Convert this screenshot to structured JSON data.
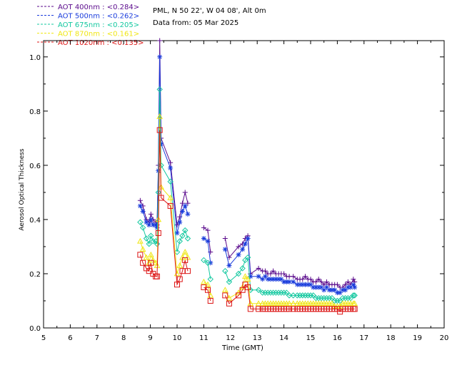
{
  "chart_data": {
    "type": "scatter",
    "info_lines": [
      "PML, N 50 22', W 04 08', Alt 0m",
      "Data from: 05 Mar 2025"
    ],
    "xlabel": "Time (GMT)",
    "ylabel": "Aerosol Optical Thickness",
    "xlim": [
      5,
      20
    ],
    "ylim": [
      0,
      1.06
    ],
    "x_ticks": [
      5,
      6,
      7,
      8,
      9,
      10,
      11,
      12,
      13,
      14,
      15,
      16,
      17,
      18,
      19,
      20
    ],
    "y_ticks": [
      0.0,
      0.2,
      0.4,
      0.6,
      0.8,
      1.0
    ],
    "y_tick_labels": [
      "0.0",
      "0.2",
      "0.4",
      "0.6",
      "0.8",
      "1.0"
    ],
    "x_tick_labels": [
      "5",
      "6",
      "7",
      "8",
      "9",
      "10",
      "11",
      "12",
      "13",
      "14",
      "15",
      "16",
      "17",
      "18",
      "19",
      "20"
    ],
    "legend_placement": "top-left, above plot",
    "series": [
      {
        "name": "AOT  400nm : <0.284>",
        "color": "#5a0a8c",
        "marker": "plus",
        "x": [
          8.62,
          8.72,
          8.85,
          8.95,
          9.02,
          9.1,
          9.2,
          9.25,
          9.3,
          9.35,
          9.4,
          9.75,
          10.0,
          10.1,
          10.2,
          10.3,
          10.4,
          11.0,
          11.15,
          11.25,
          11.8,
          11.95,
          12.3,
          12.45,
          12.55,
          12.65,
          12.75,
          13.05,
          13.2,
          13.3,
          13.4,
          13.5,
          13.6,
          13.7,
          13.8,
          13.9,
          14.0,
          14.1,
          14.2,
          14.35,
          14.5,
          14.6,
          14.7,
          14.8,
          14.9,
          15.0,
          15.1,
          15.2,
          15.3,
          15.4,
          15.5,
          15.6,
          15.7,
          15.8,
          15.9,
          16.0,
          16.1,
          16.2,
          16.3,
          16.4,
          16.5,
          16.6,
          16.65
        ],
        "y": [
          0.47,
          0.45,
          0.4,
          0.39,
          0.42,
          0.4,
          0.39,
          0.38,
          0.6,
          1.06,
          0.7,
          0.61,
          0.38,
          0.41,
          0.46,
          0.5,
          0.46,
          0.37,
          0.36,
          0.28,
          0.33,
          0.26,
          0.3,
          0.31,
          0.33,
          0.34,
          0.2,
          0.22,
          0.21,
          0.21,
          0.2,
          0.2,
          0.21,
          0.2,
          0.2,
          0.2,
          0.2,
          0.19,
          0.19,
          0.19,
          0.18,
          0.18,
          0.18,
          0.19,
          0.18,
          0.18,
          0.17,
          0.17,
          0.18,
          0.17,
          0.16,
          0.17,
          0.16,
          0.16,
          0.16,
          0.16,
          0.15,
          0.15,
          0.16,
          0.17,
          0.16,
          0.18,
          0.17
        ]
      },
      {
        "name": "AOT  500nm : <0.262>",
        "color": "#1a3cdc",
        "marker": "asterisk",
        "x": [
          8.62,
          8.72,
          8.85,
          8.95,
          9.02,
          9.1,
          9.2,
          9.25,
          9.3,
          9.35,
          9.4,
          9.75,
          10.0,
          10.1,
          10.2,
          10.3,
          10.4,
          11.0,
          11.15,
          11.25,
          11.8,
          11.95,
          12.3,
          12.45,
          12.55,
          12.65,
          12.75,
          13.05,
          13.2,
          13.3,
          13.4,
          13.5,
          13.6,
          13.7,
          13.8,
          13.9,
          14.0,
          14.1,
          14.2,
          14.35,
          14.5,
          14.6,
          14.7,
          14.8,
          14.9,
          15.0,
          15.1,
          15.2,
          15.3,
          15.4,
          15.5,
          15.6,
          15.7,
          15.8,
          15.9,
          16.0,
          16.1,
          16.2,
          16.3,
          16.4,
          16.5,
          16.6,
          16.65
        ],
        "y": [
          0.45,
          0.43,
          0.39,
          0.38,
          0.4,
          0.38,
          0.38,
          0.37,
          0.58,
          1.0,
          0.68,
          0.59,
          0.35,
          0.39,
          0.43,
          0.45,
          0.42,
          0.33,
          0.32,
          0.24,
          0.29,
          0.23,
          0.27,
          0.29,
          0.31,
          0.33,
          0.19,
          0.19,
          0.18,
          0.19,
          0.18,
          0.18,
          0.18,
          0.18,
          0.18,
          0.18,
          0.17,
          0.17,
          0.17,
          0.17,
          0.16,
          0.16,
          0.16,
          0.16,
          0.16,
          0.16,
          0.15,
          0.15,
          0.15,
          0.15,
          0.14,
          0.15,
          0.14,
          0.14,
          0.14,
          0.13,
          0.13,
          0.14,
          0.14,
          0.15,
          0.15,
          0.16,
          0.15
        ]
      },
      {
        "name": "AOT  675nm : <0.205>",
        "color": "#14c8a0",
        "marker": "diamond",
        "x": [
          8.62,
          8.72,
          8.85,
          8.95,
          9.02,
          9.1,
          9.2,
          9.25,
          9.3,
          9.35,
          9.4,
          9.75,
          10.0,
          10.1,
          10.2,
          10.3,
          10.4,
          11.0,
          11.15,
          11.25,
          11.8,
          11.95,
          12.3,
          12.45,
          12.55,
          12.65,
          12.75,
          13.05,
          13.2,
          13.3,
          13.4,
          13.5,
          13.6,
          13.7,
          13.8,
          13.9,
          14.0,
          14.1,
          14.2,
          14.35,
          14.5,
          14.6,
          14.7,
          14.8,
          14.9,
          15.0,
          15.1,
          15.2,
          15.3,
          15.4,
          15.5,
          15.6,
          15.7,
          15.8,
          15.9,
          16.0,
          16.1,
          16.2,
          16.3,
          16.4,
          16.5,
          16.6,
          16.65
        ],
        "y": [
          0.39,
          0.37,
          0.33,
          0.31,
          0.34,
          0.32,
          0.32,
          0.31,
          0.5,
          0.88,
          0.6,
          0.54,
          0.28,
          0.32,
          0.34,
          0.36,
          0.33,
          0.25,
          0.24,
          0.18,
          0.21,
          0.17,
          0.2,
          0.22,
          0.25,
          0.26,
          0.14,
          0.14,
          0.13,
          0.13,
          0.13,
          0.13,
          0.13,
          0.13,
          0.13,
          0.13,
          0.13,
          0.13,
          0.12,
          0.12,
          0.12,
          0.12,
          0.12,
          0.12,
          0.12,
          0.12,
          0.12,
          0.11,
          0.11,
          0.11,
          0.11,
          0.11,
          0.11,
          0.11,
          0.1,
          0.1,
          0.1,
          0.11,
          0.11,
          0.11,
          0.11,
          0.12,
          0.12
        ]
      },
      {
        "name": "AOT  870nm : <0.161>",
        "color": "#f0e614",
        "marker": "triangle",
        "x": [
          8.62,
          8.72,
          8.85,
          8.95,
          9.02,
          9.1,
          9.2,
          9.25,
          9.3,
          9.35,
          9.4,
          9.75,
          10.0,
          10.1,
          10.2,
          10.3,
          10.4,
          11.0,
          11.15,
          11.25,
          11.8,
          11.95,
          12.3,
          12.45,
          12.55,
          12.65,
          12.75,
          13.05,
          13.2,
          13.3,
          13.4,
          13.5,
          13.6,
          13.7,
          13.8,
          13.9,
          14.0,
          14.1,
          14.2,
          14.35,
          14.5,
          14.6,
          14.7,
          14.8,
          14.9,
          15.0,
          15.1,
          15.2,
          15.3,
          15.4,
          15.5,
          15.6,
          15.7,
          15.8,
          15.9,
          16.0,
          16.1,
          16.2,
          16.3,
          16.4,
          16.5,
          16.6,
          16.65
        ],
        "y": [
          0.32,
          0.29,
          0.26,
          0.24,
          0.27,
          0.25,
          0.24,
          0.23,
          0.4,
          0.78,
          0.52,
          0.48,
          0.2,
          0.23,
          0.26,
          0.28,
          0.26,
          0.17,
          0.16,
          0.12,
          0.14,
          0.11,
          0.13,
          0.15,
          0.19,
          0.18,
          0.09,
          0.09,
          0.09,
          0.09,
          0.09,
          0.09,
          0.09,
          0.09,
          0.09,
          0.09,
          0.09,
          0.09,
          0.09,
          0.09,
          0.09,
          0.09,
          0.09,
          0.09,
          0.09,
          0.09,
          0.09,
          0.09,
          0.09,
          0.09,
          0.09,
          0.09,
          0.09,
          0.09,
          0.08,
          0.08,
          0.08,
          0.09,
          0.09,
          0.09,
          0.09,
          0.09,
          0.09
        ]
      },
      {
        "name": "AOT 1020nm : <0.135>",
        "color": "#dc1414",
        "marker": "square",
        "x": [
          8.62,
          8.72,
          8.85,
          8.95,
          9.02,
          9.1,
          9.2,
          9.25,
          9.3,
          9.35,
          9.4,
          9.75,
          10.0,
          10.1,
          10.2,
          10.3,
          10.4,
          11.0,
          11.15,
          11.25,
          11.8,
          11.95,
          12.3,
          12.45,
          12.55,
          12.65,
          12.75,
          13.05,
          13.2,
          13.3,
          13.4,
          13.5,
          13.6,
          13.7,
          13.8,
          13.9,
          14.0,
          14.1,
          14.2,
          14.35,
          14.5,
          14.6,
          14.7,
          14.8,
          14.9,
          15.0,
          15.1,
          15.2,
          15.3,
          15.4,
          15.5,
          15.6,
          15.7,
          15.8,
          15.9,
          16.0,
          16.1,
          16.2,
          16.3,
          16.4,
          16.5,
          16.6,
          16.65
        ],
        "y": [
          0.27,
          0.24,
          0.22,
          0.21,
          0.24,
          0.2,
          0.19,
          0.19,
          0.35,
          0.73,
          0.48,
          0.45,
          0.16,
          0.18,
          0.21,
          0.25,
          0.21,
          0.15,
          0.14,
          0.1,
          0.12,
          0.09,
          0.12,
          0.14,
          0.16,
          0.15,
          0.07,
          0.07,
          0.07,
          0.07,
          0.07,
          0.07,
          0.07,
          0.07,
          0.07,
          0.07,
          0.07,
          0.07,
          0.07,
          0.07,
          0.07,
          0.07,
          0.07,
          0.07,
          0.07,
          0.07,
          0.07,
          0.07,
          0.07,
          0.07,
          0.07,
          0.07,
          0.07,
          0.07,
          0.07,
          0.07,
          0.06,
          0.07,
          0.07,
          0.07,
          0.07,
          0.07,
          0.07
        ]
      }
    ]
  }
}
